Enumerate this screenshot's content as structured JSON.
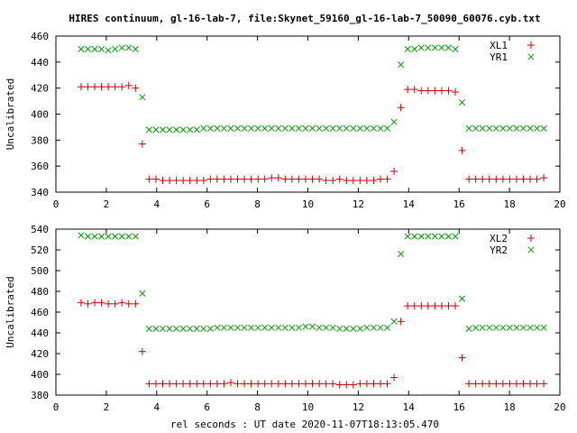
{
  "title": "HIRES continuum, gl-16-lab-7, file:Skynet_59160_gl-16-lab-7_50090_60076.cyb.txt",
  "xlabel": "rel seconds : UT date 2020-11-07T18:13:05.470",
  "colors": {
    "L": "#cc0000",
    "R": "#009900",
    "axis": "#000000"
  },
  "chart_data": [
    {
      "type": "scatter",
      "ylabel": "Uncalibrated",
      "xlim": [
        0,
        20
      ],
      "ylim": [
        340,
        460
      ],
      "xticks": [
        0,
        2,
        4,
        6,
        8,
        10,
        12,
        14,
        16,
        18,
        20
      ],
      "yticks": [
        340,
        360,
        380,
        400,
        420,
        440,
        460
      ],
      "legend_position": "top-right",
      "grid": false,
      "series": [
        {
          "name": "XL1",
          "marker": "plus",
          "color": "#cc0000",
          "x": [
            1.0,
            1.27,
            1.54,
            1.81,
            2.08,
            2.35,
            2.62,
            2.89,
            3.16,
            3.43,
            3.7,
            3.97,
            4.24,
            4.51,
            4.78,
            5.05,
            5.32,
            5.59,
            5.86,
            6.13,
            6.4,
            6.67,
            6.94,
            7.21,
            7.48,
            7.75,
            8.02,
            8.29,
            8.56,
            8.83,
            9.1,
            9.37,
            9.64,
            9.91,
            10.18,
            10.45,
            10.72,
            10.99,
            11.26,
            11.53,
            11.8,
            12.07,
            12.34,
            12.61,
            12.88,
            13.15,
            13.42,
            13.69,
            13.96,
            14.23,
            14.5,
            14.77,
            15.04,
            15.31,
            15.58,
            15.85,
            16.12,
            16.39,
            16.66,
            16.93,
            17.2,
            17.47,
            17.74,
            18.01,
            18.28,
            18.55,
            18.82,
            19.09,
            19.36
          ],
          "y": [
            421,
            421,
            421,
            421,
            421,
            421,
            421,
            422,
            420,
            377,
            350,
            350,
            349,
            349,
            349,
            349,
            349,
            349,
            349,
            350,
            350,
            350,
            350,
            350,
            350,
            350,
            350,
            350,
            351,
            351,
            350,
            350,
            350,
            350,
            350,
            350,
            349,
            349,
            350,
            349,
            349,
            349,
            349,
            349,
            350,
            350,
            356,
            405,
            419,
            419,
            418,
            418,
            418,
            418,
            418,
            417,
            372,
            350,
            350,
            350,
            350,
            350,
            350,
            350,
            350,
            350,
            350,
            350,
            351
          ]
        },
        {
          "name": "YR1",
          "marker": "cross",
          "color": "#009900",
          "x": [
            1.0,
            1.27,
            1.54,
            1.81,
            2.08,
            2.35,
            2.62,
            2.89,
            3.16,
            3.43,
            3.7,
            3.97,
            4.24,
            4.51,
            4.78,
            5.05,
            5.32,
            5.59,
            5.86,
            6.13,
            6.4,
            6.67,
            6.94,
            7.21,
            7.48,
            7.75,
            8.02,
            8.29,
            8.56,
            8.83,
            9.1,
            9.37,
            9.64,
            9.91,
            10.18,
            10.45,
            10.72,
            10.99,
            11.26,
            11.53,
            11.8,
            12.07,
            12.34,
            12.61,
            12.88,
            13.15,
            13.42,
            13.69,
            13.96,
            14.23,
            14.5,
            14.77,
            15.04,
            15.31,
            15.58,
            15.85,
            16.12,
            16.39,
            16.66,
            16.93,
            17.2,
            17.47,
            17.74,
            18.01,
            18.28,
            18.55,
            18.82,
            19.09,
            19.36
          ],
          "y": [
            450,
            450,
            450,
            450,
            449,
            450,
            451,
            451,
            450,
            413,
            388,
            388,
            388,
            388,
            388,
            388,
            388,
            388,
            389,
            389,
            389,
            389,
            389,
            389,
            389,
            389,
            389,
            389,
            389,
            389,
            389,
            389,
            389,
            389,
            389,
            389,
            389,
            389,
            389,
            389,
            389,
            389,
            389,
            389,
            389,
            389,
            394,
            438,
            450,
            450,
            451,
            451,
            451,
            451,
            451,
            450,
            409,
            389,
            389,
            389,
            389,
            389,
            389,
            389,
            389,
            389,
            389,
            389,
            389
          ]
        }
      ]
    },
    {
      "type": "scatter",
      "ylabel": "Uncalibrated",
      "xlim": [
        0,
        20
      ],
      "ylim": [
        380,
        540
      ],
      "xticks": [
        0,
        2,
        4,
        6,
        8,
        10,
        12,
        14,
        16,
        18,
        20
      ],
      "yticks": [
        380,
        400,
        420,
        440,
        460,
        480,
        500,
        520,
        540
      ],
      "legend_position": "top-right",
      "grid": false,
      "series": [
        {
          "name": "XL2",
          "marker": "plus",
          "color": "#cc0000",
          "x": [
            1.0,
            1.27,
            1.54,
            1.81,
            2.08,
            2.35,
            2.62,
            2.89,
            3.16,
            3.43,
            3.7,
            3.97,
            4.24,
            4.51,
            4.78,
            5.05,
            5.32,
            5.59,
            5.86,
            6.13,
            6.4,
            6.67,
            6.94,
            7.21,
            7.48,
            7.75,
            8.02,
            8.29,
            8.56,
            8.83,
            9.1,
            9.37,
            9.64,
            9.91,
            10.18,
            10.45,
            10.72,
            10.99,
            11.26,
            11.53,
            11.8,
            12.07,
            12.34,
            12.61,
            12.88,
            13.15,
            13.42,
            13.69,
            13.96,
            14.23,
            14.5,
            14.77,
            15.04,
            15.31,
            15.58,
            15.85,
            16.12,
            16.39,
            16.66,
            16.93,
            17.2,
            17.47,
            17.74,
            18.01,
            18.28,
            18.55,
            18.82,
            19.09,
            19.36
          ],
          "y": [
            469,
            468,
            469,
            469,
            468,
            468,
            469,
            468,
            468,
            422,
            391,
            391,
            391,
            391,
            391,
            391,
            391,
            391,
            391,
            391,
            391,
            391,
            392,
            391,
            391,
            391,
            391,
            391,
            391,
            391,
            391,
            391,
            391,
            391,
            391,
            391,
            391,
            391,
            390,
            390,
            390,
            391,
            391,
            391,
            391,
            391,
            397,
            451,
            466,
            466,
            466,
            466,
            466,
            466,
            466,
            466,
            416,
            391,
            391,
            391,
            391,
            391,
            391,
            391,
            391,
            391,
            391,
            391,
            391
          ]
        },
        {
          "name": "YR2",
          "marker": "cross",
          "color": "#009900",
          "x": [
            1.0,
            1.27,
            1.54,
            1.81,
            2.08,
            2.35,
            2.62,
            2.89,
            3.16,
            3.43,
            3.7,
            3.97,
            4.24,
            4.51,
            4.78,
            5.05,
            5.32,
            5.59,
            5.86,
            6.13,
            6.4,
            6.67,
            6.94,
            7.21,
            7.48,
            7.75,
            8.02,
            8.29,
            8.56,
            8.83,
            9.1,
            9.37,
            9.64,
            9.91,
            10.18,
            10.45,
            10.72,
            10.99,
            11.26,
            11.53,
            11.8,
            12.07,
            12.34,
            12.61,
            12.88,
            13.15,
            13.42,
            13.69,
            13.96,
            14.23,
            14.5,
            14.77,
            15.04,
            15.31,
            15.58,
            15.85,
            16.12,
            16.39,
            16.66,
            16.93,
            17.2,
            17.47,
            17.74,
            18.01,
            18.28,
            18.55,
            18.82,
            19.09,
            19.36
          ],
          "y": [
            534,
            533,
            533,
            533,
            533,
            533,
            533,
            533,
            533,
            478,
            444,
            444,
            444,
            444,
            444,
            444,
            444,
            444,
            444,
            444,
            445,
            445,
            445,
            445,
            445,
            445,
            445,
            445,
            445,
            445,
            445,
            445,
            445,
            446,
            446,
            445,
            445,
            445,
            444,
            444,
            444,
            444,
            445,
            445,
            445,
            445,
            451,
            516,
            533,
            533,
            533,
            533,
            533,
            533,
            533,
            533,
            473,
            444,
            445,
            445,
            445,
            445,
            445,
            445,
            445,
            445,
            445,
            445,
            445
          ]
        }
      ]
    }
  ]
}
